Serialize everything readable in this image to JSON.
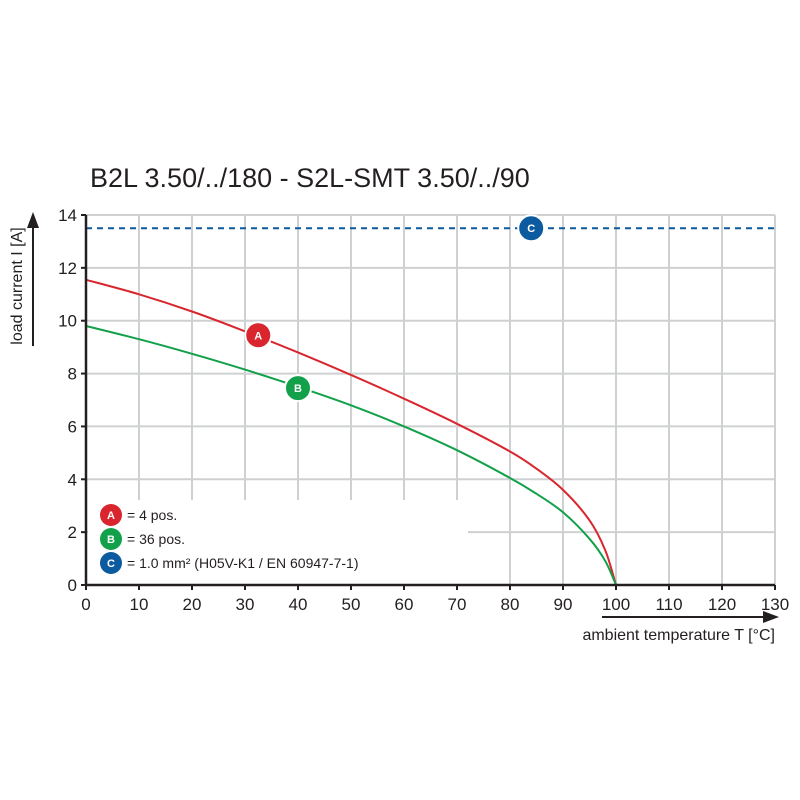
{
  "chart_data": {
    "type": "line",
    "title": "B2L 3.50/../180 - S2L-SMT 3.50/../90",
    "xlabel": "ambient temperature T [°C]",
    "ylabel": "load current I [A]",
    "xlim": [
      0,
      130
    ],
    "ylim": [
      0,
      14
    ],
    "xticks": [
      0,
      10,
      20,
      30,
      40,
      50,
      60,
      70,
      80,
      90,
      100,
      110,
      120,
      130
    ],
    "yticks": [
      0,
      2,
      4,
      6,
      8,
      10,
      12,
      14
    ],
    "grid": true,
    "legend_position": "bottom-left",
    "series": [
      {
        "name": "A",
        "description": "= 4 pos.",
        "color": "#d9262e",
        "style": "solid",
        "badge_at": [
          32.5,
          9.45
        ],
        "points": [
          [
            0,
            11.55
          ],
          [
            10,
            11.0
          ],
          [
            20,
            10.35
          ],
          [
            30,
            9.6
          ],
          [
            40,
            8.8
          ],
          [
            50,
            7.95
          ],
          [
            60,
            7.05
          ],
          [
            70,
            6.1
          ],
          [
            80,
            5.05
          ],
          [
            85,
            4.4
          ],
          [
            90,
            3.6
          ],
          [
            95,
            2.45
          ],
          [
            98,
            1.3
          ],
          [
            100,
            0
          ]
        ]
      },
      {
        "name": "B",
        "description": "= 36 pos.",
        "color": "#13a04a",
        "style": "solid",
        "badge_at": [
          40,
          7.45
        ],
        "points": [
          [
            0,
            9.8
          ],
          [
            10,
            9.3
          ],
          [
            20,
            8.75
          ],
          [
            30,
            8.15
          ],
          [
            40,
            7.5
          ],
          [
            50,
            6.8
          ],
          [
            60,
            6.0
          ],
          [
            70,
            5.1
          ],
          [
            80,
            4.05
          ],
          [
            85,
            3.45
          ],
          [
            90,
            2.75
          ],
          [
            95,
            1.75
          ],
          [
            98,
            0.9
          ],
          [
            100,
            0
          ]
        ]
      },
      {
        "name": "C",
        "description": "= 1.0 mm² (H05V-K1 / EN 60947-7-1)",
        "color": "#0c5aa0",
        "style": "dashed",
        "badge_at": [
          84,
          13.5
        ],
        "points": [
          [
            0,
            13.5
          ],
          [
            130,
            13.5
          ]
        ]
      }
    ]
  }
}
